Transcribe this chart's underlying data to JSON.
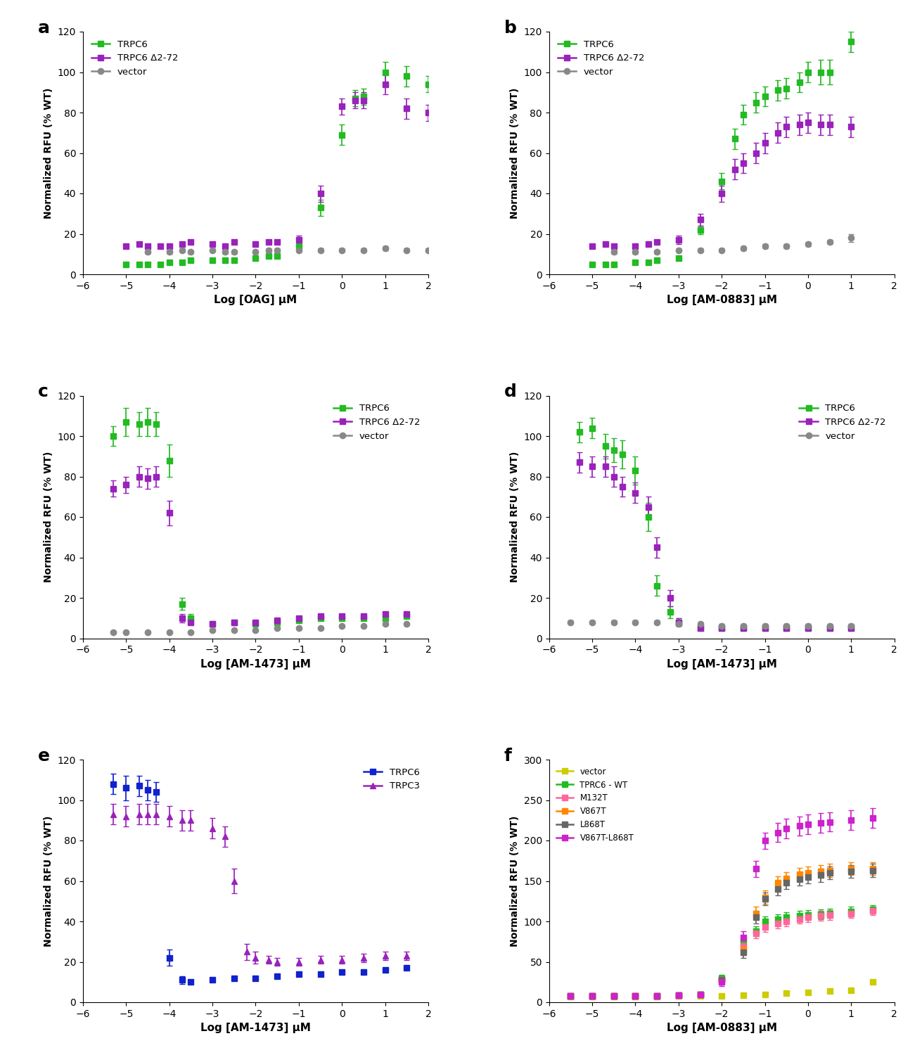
{
  "ylabel": "Normalized RFU (% WT)",
  "xlabel_a": "Log [OAG] μM",
  "xlabel_b": "Log [AM-0883] μM",
  "xlabel_c": "Log [AM-1473] μM",
  "xlabel_d": "Log [AM-1473] μM",
  "xlabel_e": "Log [AM-1473] μM",
  "xlabel_f": "Log [AM-0883] μM",
  "green": "#22BB22",
  "purple": "#9922BB",
  "gray": "#888888",
  "blue": "#1122CC",
  "trpc3_color": "#9922BB",
  "pink": "#FF6699",
  "orange": "#FF8800",
  "dark_gray": "#666666",
  "magenta": "#CC22CC",
  "yellow": "#CCCC00",
  "panel_a": {
    "TRPC6_x": [
      -5.0,
      -4.7,
      -4.5,
      -4.2,
      -4.0,
      -3.7,
      -3.5,
      -3.0,
      -2.7,
      -2.5,
      -2.0,
      -1.7,
      -1.5,
      -1.0,
      -0.5,
      0.0,
      0.3,
      0.5,
      1.0,
      1.5,
      2.0
    ],
    "TRPC6_y": [
      5,
      5,
      5,
      5,
      6,
      6,
      7,
      7,
      7,
      7,
      8,
      9,
      9,
      14,
      33,
      69,
      87,
      88,
      100,
      98,
      94
    ],
    "TRPC6_err": [
      1,
      1,
      1,
      1,
      1,
      1,
      1,
      1,
      1,
      1,
      1,
      1,
      1,
      2,
      4,
      5,
      4,
      4,
      5,
      5,
      4
    ],
    "TRPC6D_x": [
      -5.0,
      -4.7,
      -4.5,
      -4.2,
      -4.0,
      -3.7,
      -3.5,
      -3.0,
      -2.7,
      -2.5,
      -2.0,
      -1.7,
      -1.5,
      -1.0,
      -0.5,
      0.0,
      0.3,
      0.5,
      1.0,
      1.5,
      2.0
    ],
    "TRPC6D_y": [
      14,
      15,
      14,
      14,
      14,
      15,
      16,
      15,
      14,
      16,
      15,
      16,
      16,
      17,
      40,
      83,
      86,
      86,
      94,
      82,
      80
    ],
    "TRPC6D_err": [
      1,
      1,
      1,
      1,
      1,
      1,
      1,
      1,
      1,
      1,
      1,
      1,
      1,
      2,
      4,
      4,
      4,
      4,
      5,
      5,
      4
    ],
    "vector_x": [
      -4.5,
      -4.0,
      -3.7,
      -3.5,
      -3.0,
      -2.7,
      -2.5,
      -2.0,
      -1.7,
      -1.5,
      -1.0,
      -0.5,
      0.0,
      0.5,
      1.0,
      1.5,
      2.0
    ],
    "vector_y": [
      11,
      11,
      12,
      11,
      12,
      11,
      11,
      11,
      12,
      12,
      12,
      12,
      12,
      12,
      13,
      12,
      12
    ],
    "vector_err": [
      1,
      1,
      1,
      1,
      1,
      1,
      1,
      1,
      1,
      1,
      1,
      1,
      1,
      1,
      1,
      1,
      1
    ],
    "ylim": [
      0,
      120
    ],
    "xlim": [
      -6,
      2
    ]
  },
  "panel_b": {
    "TRPC6_x": [
      -5.0,
      -4.7,
      -4.5,
      -4.0,
      -3.7,
      -3.5,
      -3.0,
      -2.5,
      -2.0,
      -1.7,
      -1.5,
      -1.2,
      -1.0,
      -0.7,
      -0.5,
      -0.2,
      0.0,
      0.3,
      0.5,
      1.0
    ],
    "TRPC6_y": [
      5,
      5,
      5,
      6,
      6,
      7,
      8,
      22,
      46,
      67,
      79,
      85,
      88,
      91,
      92,
      95,
      100,
      100,
      100,
      115
    ],
    "TRPC6_err": [
      1,
      1,
      1,
      1,
      1,
      1,
      1,
      2,
      4,
      5,
      5,
      5,
      5,
      5,
      5,
      5,
      5,
      6,
      6,
      5
    ],
    "TRPC6D_x": [
      -5.0,
      -4.7,
      -4.5,
      -4.0,
      -3.7,
      -3.5,
      -3.0,
      -2.5,
      -2.0,
      -1.7,
      -1.5,
      -1.2,
      -1.0,
      -0.7,
      -0.5,
      -0.2,
      0.0,
      0.3,
      0.5,
      1.0
    ],
    "TRPC6D_y": [
      14,
      15,
      14,
      14,
      15,
      16,
      17,
      27,
      40,
      52,
      55,
      60,
      65,
      70,
      73,
      74,
      75,
      74,
      74,
      73
    ],
    "TRPC6D_err": [
      1,
      1,
      1,
      1,
      1,
      1,
      2,
      3,
      4,
      5,
      5,
      5,
      5,
      5,
      5,
      5,
      5,
      5,
      5,
      5
    ],
    "vector_x": [
      -4.5,
      -4.0,
      -3.5,
      -3.0,
      -2.5,
      -2.0,
      -1.5,
      -1.0,
      -0.5,
      0.0,
      0.5,
      1.0
    ],
    "vector_y": [
      11,
      11,
      11,
      12,
      12,
      12,
      13,
      14,
      14,
      15,
      16,
      18
    ],
    "vector_err": [
      1,
      1,
      1,
      1,
      1,
      1,
      1,
      1,
      1,
      1,
      1,
      2
    ],
    "ylim": [
      0,
      120
    ],
    "xlim": [
      -6,
      2
    ]
  },
  "panel_c": {
    "TRPC6_x": [
      -5.3,
      -5.0,
      -4.7,
      -4.5,
      -4.3,
      -4.0,
      -3.7,
      -3.5,
      -3.0,
      -2.5,
      -2.0,
      -1.5,
      -1.0,
      -0.5,
      0.0,
      0.5,
      1.0,
      1.5
    ],
    "TRPC6_y": [
      100,
      107,
      106,
      107,
      106,
      88,
      17,
      10,
      7,
      8,
      7,
      8,
      9,
      10,
      10,
      10,
      10,
      11
    ],
    "TRPC6_err": [
      5,
      7,
      6,
      7,
      6,
      8,
      3,
      2,
      1,
      1,
      1,
      1,
      1,
      1,
      1,
      1,
      1,
      1
    ],
    "TRPC6D_x": [
      -5.3,
      -5.0,
      -4.7,
      -4.5,
      -4.3,
      -4.0,
      -3.7,
      -3.5,
      -3.0,
      -2.5,
      -2.0,
      -1.5,
      -1.0,
      -0.5,
      0.0,
      0.5,
      1.0,
      1.5
    ],
    "TRPC6D_y": [
      74,
      76,
      80,
      79,
      80,
      62,
      10,
      8,
      7,
      8,
      8,
      9,
      10,
      11,
      11,
      11,
      12,
      12
    ],
    "TRPC6D_err": [
      4,
      4,
      5,
      5,
      5,
      6,
      2,
      1,
      1,
      1,
      1,
      1,
      1,
      1,
      1,
      1,
      1,
      1
    ],
    "vector_x": [
      -5.3,
      -5.0,
      -4.5,
      -4.0,
      -3.5,
      -3.0,
      -2.5,
      -2.0,
      -1.5,
      -1.0,
      -0.5,
      0.0,
      0.5,
      1.0,
      1.5
    ],
    "vector_y": [
      3,
      3,
      3,
      3,
      3,
      4,
      4,
      4,
      5,
      5,
      5,
      6,
      6,
      7,
      7
    ],
    "vector_err": [
      0.5,
      0.5,
      0.5,
      0.5,
      0.5,
      0.5,
      0.5,
      0.5,
      0.5,
      0.5,
      0.5,
      0.5,
      0.5,
      0.5,
      0.5
    ],
    "ylim": [
      0,
      120
    ],
    "xlim": [
      -6,
      2
    ]
  },
  "panel_d": {
    "TRPC6_x": [
      -5.3,
      -5.0,
      -4.7,
      -4.5,
      -4.3,
      -4.0,
      -3.7,
      -3.5,
      -3.2,
      -3.0,
      -2.5,
      -2.0,
      -1.5,
      -1.0,
      -0.5,
      0.0,
      0.5,
      1.0
    ],
    "TRPC6_y": [
      102,
      104,
      95,
      93,
      91,
      83,
      60,
      26,
      13,
      8,
      5,
      5,
      5,
      5,
      5,
      5,
      5,
      5
    ],
    "TRPC6_err": [
      5,
      5,
      6,
      6,
      7,
      7,
      7,
      5,
      3,
      2,
      1,
      1,
      1,
      1,
      1,
      1,
      1,
      1
    ],
    "TRPC6D_x": [
      -5.3,
      -5.0,
      -4.7,
      -4.5,
      -4.3,
      -4.0,
      -3.7,
      -3.5,
      -3.2,
      -3.0,
      -2.5,
      -2.0,
      -1.5,
      -1.0,
      -0.5,
      0.0,
      0.5,
      1.0
    ],
    "TRPC6D_y": [
      87,
      85,
      85,
      80,
      75,
      72,
      65,
      45,
      20,
      8,
      5,
      5,
      5,
      5,
      5,
      5,
      5,
      5
    ],
    "TRPC6D_err": [
      5,
      5,
      5,
      5,
      5,
      5,
      5,
      5,
      4,
      2,
      1,
      1,
      1,
      1,
      1,
      1,
      1,
      1
    ],
    "vector_x": [
      -5.5,
      -5.0,
      -4.5,
      -4.0,
      -3.5,
      -3.0,
      -2.5,
      -2.0,
      -1.5,
      -1.0,
      -0.5,
      0.0,
      0.5,
      1.0
    ],
    "vector_y": [
      8,
      8,
      8,
      8,
      8,
      7,
      7,
      6,
      6,
      6,
      6,
      6,
      6,
      6
    ],
    "vector_err": [
      1,
      1,
      1,
      1,
      1,
      1,
      1,
      1,
      1,
      1,
      1,
      1,
      1,
      1
    ],
    "ylim": [
      0,
      120
    ],
    "xlim": [
      -6,
      2
    ]
  },
  "panel_e": {
    "TRPC6_x": [
      -5.3,
      -5.0,
      -4.7,
      -4.5,
      -4.3,
      -4.0,
      -3.7,
      -3.5,
      -3.0,
      -2.5,
      -2.0,
      -1.5,
      -1.0,
      -0.5,
      0.0,
      0.5,
      1.0,
      1.5
    ],
    "TRPC6_y": [
      108,
      106,
      107,
      105,
      104,
      22,
      11,
      10,
      11,
      12,
      12,
      13,
      14,
      14,
      15,
      15,
      16,
      17
    ],
    "TRPC6_err": [
      5,
      6,
      5,
      5,
      5,
      4,
      2,
      1,
      1,
      1,
      1,
      1,
      1,
      1,
      1,
      1,
      1,
      1
    ],
    "TRPC3_x": [
      -5.3,
      -5.0,
      -4.7,
      -4.5,
      -4.3,
      -4.0,
      -3.7,
      -3.5,
      -3.0,
      -2.7,
      -2.5,
      -2.2,
      -2.0,
      -1.7,
      -1.5,
      -1.0,
      -0.5,
      0.0,
      0.5,
      1.0,
      1.5
    ],
    "TRPC3_y": [
      93,
      92,
      93,
      93,
      93,
      92,
      90,
      90,
      86,
      82,
      60,
      25,
      22,
      21,
      20,
      20,
      21,
      21,
      22,
      23,
      23
    ],
    "TRPC3_err": [
      5,
      5,
      5,
      5,
      5,
      5,
      5,
      5,
      5,
      5,
      6,
      4,
      3,
      2,
      2,
      2,
      2,
      2,
      2,
      2,
      2
    ],
    "ylim": [
      0,
      120
    ],
    "xlim": [
      -6,
      2
    ]
  },
  "panel_f": {
    "vector_x": [
      -5.5,
      -5.0,
      -4.5,
      -4.0,
      -3.5,
      -3.0,
      -2.5,
      -2.0,
      -1.5,
      -1.0,
      -0.5,
      0.0,
      0.5,
      1.0,
      1.5
    ],
    "vector_y": [
      7,
      7,
      7,
      7,
      7,
      8,
      8,
      8,
      9,
      10,
      11,
      12,
      14,
      15,
      25
    ],
    "vector_err": [
      1,
      1,
      1,
      1,
      1,
      1,
      1,
      1,
      1,
      1,
      1,
      1,
      1,
      1,
      2
    ],
    "TRPC6wt_x": [
      -5.5,
      -5.0,
      -4.5,
      -4.0,
      -3.5,
      -3.0,
      -2.5,
      -2.0,
      -1.5,
      -1.2,
      -1.0,
      -0.7,
      -0.5,
      -0.2,
      0.0,
      0.3,
      0.5,
      1.0,
      1.5
    ],
    "TRPC6wt_y": [
      8,
      8,
      8,
      8,
      8,
      9,
      10,
      30,
      75,
      88,
      100,
      103,
      105,
      107,
      108,
      109,
      110,
      112,
      115
    ],
    "TRPC6wt_err": [
      1,
      1,
      1,
      1,
      1,
      1,
      2,
      4,
      6,
      6,
      6,
      6,
      6,
      6,
      6,
      6,
      6,
      6,
      5
    ],
    "M132T_x": [
      -5.5,
      -5.0,
      -4.5,
      -4.0,
      -3.5,
      -3.0,
      -2.5,
      -2.0,
      -1.5,
      -1.2,
      -1.0,
      -0.7,
      -0.5,
      -0.2,
      0.0,
      0.3,
      0.5,
      1.0,
      1.5
    ],
    "M132T_y": [
      8,
      8,
      8,
      8,
      8,
      9,
      10,
      28,
      70,
      85,
      93,
      97,
      100,
      103,
      105,
      107,
      108,
      110,
      113
    ],
    "M132T_err": [
      1,
      1,
      1,
      1,
      1,
      1,
      2,
      4,
      6,
      6,
      6,
      6,
      6,
      6,
      6,
      6,
      6,
      6,
      5
    ],
    "V867T_x": [
      -5.5,
      -5.0,
      -4.5,
      -4.0,
      -3.5,
      -3.0,
      -2.5,
      -2.0,
      -1.5,
      -1.2,
      -1.0,
      -0.7,
      -0.5,
      -0.2,
      0.0,
      0.3,
      0.5,
      1.0,
      1.5
    ],
    "V867T_y": [
      8,
      8,
      8,
      8,
      8,
      9,
      10,
      28,
      65,
      110,
      130,
      148,
      153,
      158,
      160,
      162,
      163,
      165,
      165
    ],
    "V867T_err": [
      1,
      1,
      1,
      1,
      1,
      1,
      2,
      4,
      7,
      8,
      8,
      8,
      8,
      8,
      8,
      8,
      8,
      8,
      8
    ],
    "L868T_x": [
      -5.5,
      -5.0,
      -4.5,
      -4.0,
      -3.5,
      -3.0,
      -2.5,
      -2.0,
      -1.5,
      -1.2,
      -1.0,
      -0.7,
      -0.5,
      -0.2,
      0.0,
      0.3,
      0.5,
      1.0,
      1.5
    ],
    "L868T_y": [
      8,
      8,
      8,
      8,
      8,
      9,
      10,
      28,
      62,
      105,
      128,
      140,
      148,
      152,
      155,
      157,
      160,
      162,
      163
    ],
    "L868T_err": [
      1,
      1,
      1,
      1,
      1,
      1,
      2,
      4,
      7,
      8,
      8,
      8,
      8,
      8,
      8,
      8,
      8,
      8,
      8
    ],
    "V867TL868T_x": [
      -5.5,
      -5.0,
      -4.5,
      -4.0,
      -3.5,
      -3.0,
      -2.5,
      -2.0,
      -1.5,
      -1.2,
      -1.0,
      -0.7,
      -0.5,
      -0.2,
      0.0,
      0.3,
      0.5,
      1.0,
      1.5
    ],
    "V867TL868T_y": [
      8,
      8,
      8,
      8,
      8,
      9,
      10,
      25,
      80,
      165,
      200,
      210,
      215,
      218,
      220,
      222,
      223,
      225,
      228
    ],
    "V867TL868T_err": [
      1,
      1,
      1,
      1,
      1,
      1,
      2,
      5,
      8,
      10,
      10,
      12,
      12,
      12,
      12,
      12,
      12,
      12,
      12
    ],
    "ylim": [
      0,
      300
    ],
    "xlim": [
      -6,
      2
    ]
  }
}
